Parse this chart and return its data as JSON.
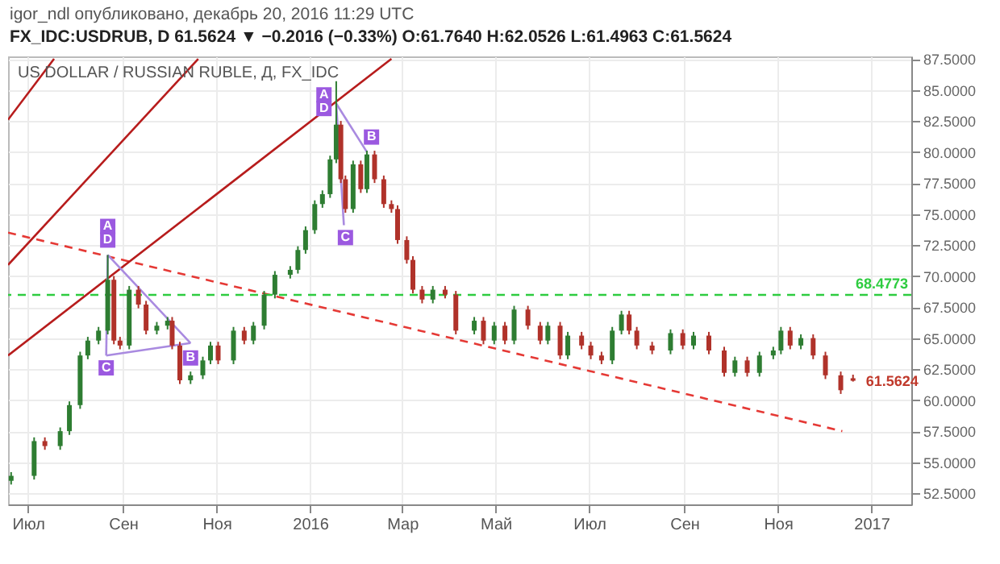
{
  "chart_data": {
    "type": "candlestick",
    "title": "US DOLLAR / RUSSIAN RUBLE, Д, FX_IDC",
    "subtitle": "FX_IDC:USDRUB, D 61.5624 ▼ −0.2016 (−0.33%) O:61.7640 H:62.0526 L:61.4963 C:61.5624",
    "x": [
      "2015-06-20",
      "2015-07-05",
      "2015-07-12",
      "2015-07-22",
      "2015-07-28",
      "2015-08-04",
      "2015-08-09",
      "2015-08-16",
      "2015-08-22",
      "2015-08-26",
      "2015-08-30",
      "2015-09-05",
      "2015-09-11",
      "2015-09-16",
      "2015-09-23",
      "2015-09-30",
      "2015-10-03",
      "2015-10-08",
      "2015-10-15",
      "2015-10-23",
      "2015-10-28",
      "2015-11-02",
      "2015-11-12",
      "2015-11-19",
      "2015-11-25",
      "2015-12-02",
      "2015-12-09",
      "2015-12-19",
      "2015-12-24",
      "2015-12-29",
      "2016-01-04",
      "2016-01-09",
      "2016-01-14",
      "2016-01-18",
      "2016-01-21",
      "2016-01-24",
      "2016-01-29",
      "2016-02-03",
      "2016-02-07",
      "2016-02-12",
      "2016-02-18",
      "2016-02-23",
      "2016-02-27",
      "2016-03-04",
      "2016-03-08",
      "2016-03-14",
      "2016-03-21",
      "2016-03-29",
      "2016-04-05",
      "2016-04-17",
      "2016-04-23",
      "2016-04-30",
      "2016-05-07",
      "2016-05-13",
      "2016-05-22",
      "2016-05-30",
      "2016-06-04",
      "2016-06-12",
      "2016-06-17",
      "2016-06-26",
      "2016-07-02",
      "2016-07-09",
      "2016-07-16",
      "2016-07-22",
      "2016-07-27",
      "2016-08-01",
      "2016-08-11",
      "2016-08-23",
      "2016-08-31",
      "2016-09-07",
      "2016-09-17",
      "2016-09-27",
      "2016-10-04",
      "2016-10-12",
      "2016-10-20",
      "2016-10-29",
      "2016-11-03",
      "2016-11-09",
      "2016-11-16",
      "2016-11-24",
      "2016-12-02",
      "2016-12-12",
      "2016-12-20"
    ],
    "ohlc": [
      [
        53.5,
        54.2,
        53.2,
        53.9
      ],
      [
        53.9,
        57.0,
        53.6,
        56.7
      ],
      [
        56.7,
        57.0,
        56.0,
        56.3
      ],
      [
        56.3,
        57.8,
        56.0,
        57.5
      ],
      [
        57.5,
        59.9,
        57.2,
        59.6
      ],
      [
        59.6,
        63.9,
        59.3,
        63.6
      ],
      [
        63.6,
        65.1,
        63.3,
        64.8
      ],
      [
        64.8,
        65.9,
        64.5,
        65.6
      ],
      [
        65.6,
        71.7,
        65.3,
        69.7
      ],
      [
        69.7,
        70.0,
        64.5,
        64.8
      ],
      [
        64.8,
        65.1,
        64.1,
        64.4
      ],
      [
        64.4,
        69.2,
        64.1,
        68.9
      ],
      [
        68.9,
        69.2,
        67.4,
        67.7
      ],
      [
        67.7,
        68.0,
        65.3,
        65.6
      ],
      [
        65.6,
        66.3,
        65.3,
        66.0
      ],
      [
        66.0,
        66.7,
        65.7,
        66.4
      ],
      [
        66.4,
        66.7,
        64.1,
        64.4
      ],
      [
        64.4,
        64.7,
        61.3,
        61.6
      ],
      [
        61.6,
        62.3,
        61.3,
        62.0
      ],
      [
        62.0,
        63.5,
        61.7,
        63.2
      ],
      [
        63.2,
        64.7,
        62.9,
        64.4
      ],
      [
        64.4,
        64.7,
        62.9,
        63.2
      ],
      [
        63.2,
        65.9,
        62.9,
        65.6
      ],
      [
        65.6,
        65.9,
        64.5,
        64.8
      ],
      [
        64.8,
        66.3,
        64.5,
        66.0
      ],
      [
        66.0,
        68.8,
        65.7,
        68.5
      ],
      [
        68.5,
        70.4,
        68.2,
        70.1
      ],
      [
        70.1,
        70.8,
        69.8,
        70.5
      ],
      [
        70.5,
        72.4,
        70.2,
        72.1
      ],
      [
        72.1,
        74.0,
        71.8,
        73.7
      ],
      [
        73.7,
        76.1,
        73.4,
        75.8
      ],
      [
        75.8,
        76.9,
        75.5,
        76.6
      ],
      [
        76.6,
        79.7,
        76.3,
        79.4
      ],
      [
        79.4,
        85.7,
        79.1,
        82.2
      ],
      [
        82.2,
        82.5,
        77.5,
        77.8
      ],
      [
        77.8,
        78.1,
        75.1,
        75.4
      ],
      [
        75.4,
        79.3,
        75.1,
        79.0
      ],
      [
        79.0,
        79.3,
        76.7,
        77.0
      ],
      [
        77.0,
        80.1,
        76.7,
        79.8
      ],
      [
        79.8,
        80.1,
        77.5,
        77.8
      ],
      [
        77.8,
        78.1,
        75.5,
        75.8
      ],
      [
        75.8,
        76.1,
        75.1,
        75.4
      ],
      [
        75.4,
        75.7,
        72.6,
        72.9
      ],
      [
        72.9,
        73.2,
        71.0,
        71.3
      ],
      [
        71.3,
        71.6,
        68.6,
        68.9
      ],
      [
        68.9,
        69.2,
        67.8,
        68.1
      ],
      [
        68.1,
        69.2,
        67.8,
        68.9
      ],
      [
        68.9,
        69.2,
        68.2,
        68.5
      ],
      [
        68.5,
        68.8,
        65.3,
        65.6
      ],
      [
        65.6,
        66.7,
        65.3,
        66.4
      ],
      [
        66.4,
        66.7,
        64.5,
        64.8
      ],
      [
        64.8,
        66.3,
        64.5,
        66.0
      ],
      [
        66.0,
        66.3,
        64.5,
        64.8
      ],
      [
        64.8,
        67.6,
        64.5,
        67.3
      ],
      [
        67.3,
        67.6,
        65.7,
        66.0
      ],
      [
        66.0,
        66.3,
        64.5,
        64.8
      ],
      [
        64.8,
        66.3,
        64.5,
        66.0
      ],
      [
        66.0,
        66.3,
        63.3,
        63.6
      ],
      [
        63.6,
        65.5,
        63.3,
        65.2
      ],
      [
        65.2,
        65.5,
        64.1,
        64.4
      ],
      [
        64.4,
        64.7,
        63.3,
        63.6
      ],
      [
        63.6,
        63.9,
        62.9,
        63.2
      ],
      [
        63.2,
        65.9,
        62.9,
        65.6
      ],
      [
        65.6,
        67.2,
        65.3,
        66.9
      ],
      [
        66.9,
        67.2,
        65.3,
        65.6
      ],
      [
        65.6,
        65.9,
        64.1,
        64.4
      ],
      [
        64.4,
        64.7,
        63.7,
        64.0
      ],
      [
        64.0,
        65.7,
        63.7,
        65.4
      ],
      [
        65.4,
        65.7,
        64.1,
        64.4
      ],
      [
        64.4,
        65.5,
        64.1,
        65.2
      ],
      [
        65.2,
        65.5,
        63.7,
        64.0
      ],
      [
        64.0,
        64.3,
        61.9,
        62.2
      ],
      [
        62.2,
        63.5,
        61.9,
        63.2
      ],
      [
        63.2,
        63.5,
        61.9,
        62.2
      ],
      [
        62.2,
        63.9,
        61.9,
        63.6
      ],
      [
        63.6,
        64.3,
        63.3,
        64.0
      ],
      [
        64.0,
        65.9,
        63.7,
        65.6
      ],
      [
        65.6,
        65.9,
        64.1,
        64.4
      ],
      [
        64.4,
        65.3,
        64.1,
        65.0
      ],
      [
        65.0,
        65.3,
        63.3,
        63.6
      ],
      [
        63.6,
        63.9,
        61.7,
        62.0
      ],
      [
        62.0,
        62.3,
        60.5,
        60.8
      ],
      [
        61.764,
        62.0526,
        61.4963,
        61.5624
      ]
    ],
    "series": [
      {
        "type": "line",
        "x": [
          "2015-06-18",
          "2016-12-13"
        ],
        "values": [
          73.5,
          57.5
        ],
        "color": "#e53935",
        "line_style": "dashed"
      },
      {
        "type": "line",
        "x": [
          "2015-06-18",
          "2016-02-23"
        ],
        "values": [
          63.6,
          87.5
        ],
        "color": "#b71c1c",
        "line_style": "solid"
      },
      {
        "type": "line",
        "x": [
          "2015-06-18",
          "2015-10-20"
        ],
        "values": [
          70.9,
          87.5
        ],
        "color": "#b71c1c",
        "line_style": "solid"
      },
      {
        "type": "line",
        "x": [
          "2015-06-18",
          "2015-07-18"
        ],
        "values": [
          82.6,
          87.5
        ],
        "color": "#b71c1c",
        "line_style": "solid"
      },
      {
        "type": "line",
        "x": [
          "2015-08-22",
          "2015-10-15"
        ],
        "values": [
          71.7,
          64.6
        ],
        "color": "#a98ae0",
        "line_style": "solid"
      },
      {
        "type": "line",
        "x": [
          "2015-08-21",
          "2015-10-15"
        ],
        "values": [
          63.6,
          64.6
        ],
        "color": "#a98ae0",
        "line_style": "solid"
      },
      {
        "type": "line",
        "x": [
          "2015-08-21",
          "2015-08-22"
        ],
        "values": [
          63.6,
          71.7
        ],
        "color": "#a98ae0",
        "line_style": "solid"
      },
      {
        "type": "line",
        "x": [
          "2016-01-18",
          "2016-01-23"
        ],
        "values": [
          83.9,
          74.1
        ],
        "color": "#a98ae0",
        "line_style": "solid"
      },
      {
        "type": "line",
        "x": [
          "2016-01-18",
          "2016-02-07"
        ],
        "values": [
          83.9,
          80.0
        ],
        "color": "#a98ae0",
        "line_style": "solid"
      }
    ],
    "ref_lines": [
      {
        "axis": "y",
        "value": 68.4773,
        "label": "68.4773",
        "color": "#2ecc40",
        "line_style": "dashed"
      }
    ],
    "annotations": [
      "igor_ndl опубликовано, декабрь 20, 2016 11:29 UTC",
      {
        "text": "A",
        "x": "2015-08-22",
        "y": 74.0
      },
      {
        "text": "D",
        "x": "2015-08-22",
        "y": 72.9
      },
      {
        "text": "C",
        "x": "2015-08-21",
        "y": 62.6
      },
      {
        "text": "B",
        "x": "2015-10-15",
        "y": 63.4
      },
      {
        "text": "A",
        "x": "2016-01-10",
        "y": 84.6
      },
      {
        "text": "D",
        "x": "2016-01-10",
        "y": 83.5
      },
      {
        "text": "C",
        "x": "2016-01-24",
        "y": 73.1
      },
      {
        "text": "B",
        "x": "2016-02-10",
        "y": 81.2
      },
      {
        "text": "61.5624",
        "x": "2016-12-20",
        "y": 61.5624
      }
    ],
    "xlim": [
      "2015-06-18",
      "2017-01-27"
    ],
    "xticks": [
      {
        "value": "2015-07-01",
        "label": "Июл"
      },
      {
        "value": "2015-09-01",
        "label": "Сен"
      },
      {
        "value": "2015-11-01",
        "label": "Ноя"
      },
      {
        "value": "2016-01-01",
        "label": "2016"
      },
      {
        "value": "2016-03-01",
        "label": "Мар"
      },
      {
        "value": "2016-05-01",
        "label": "Май"
      },
      {
        "value": "2016-07-01",
        "label": "Июл"
      },
      {
        "value": "2016-09-01",
        "label": "Сен"
      },
      {
        "value": "2016-11-01",
        "label": "Ноя"
      },
      {
        "value": "2017-01-01",
        "label": "2017"
      }
    ],
    "ylim": [
      51.6,
      87.7
    ],
    "yticks": [
      {
        "value": 52.5,
        "label": "52.5000"
      },
      {
        "value": 55,
        "label": "55.0000"
      },
      {
        "value": 57.5,
        "label": "57.5000"
      },
      {
        "value": 60,
        "label": "60.0000"
      },
      {
        "value": 62.5,
        "label": "62.5000"
      },
      {
        "value": 65,
        "label": "65.0000"
      },
      {
        "value": 67.5,
        "label": "67.5000"
      },
      {
        "value": 70,
        "label": "70.0000"
      },
      {
        "value": 72.5,
        "label": "72.5000"
      },
      {
        "value": 75,
        "label": "75.0000"
      },
      {
        "value": 77.5,
        "label": "77.5000"
      },
      {
        "value": 80,
        "label": "80.0000"
      },
      {
        "value": 82.5,
        "label": "82.5000"
      },
      {
        "value": 85,
        "label": "85.0000"
      },
      {
        "value": 87.5,
        "label": "87.5000"
      }
    ],
    "grid": true
  }
}
